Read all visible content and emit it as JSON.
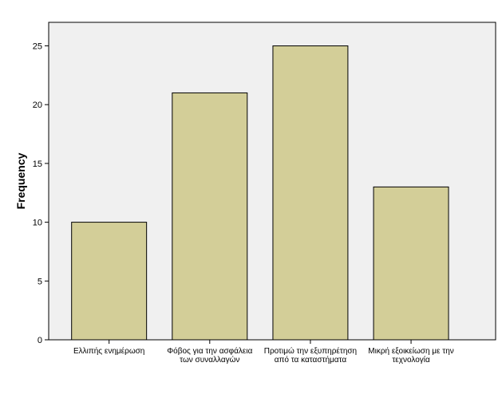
{
  "chart_data": {
    "type": "bar",
    "categories": [
      [
        "Ελλιπής ενημέρωση"
      ],
      [
        "Φόβος για την ασφάλεια",
        "των συναλλαγών"
      ],
      [
        "Προτιμώ την εξυπηρέτηση",
        "από τα καταστήματα"
      ],
      [
        "Μικρή εξοικείωση με την",
        "τεχνολογία"
      ]
    ],
    "values": [
      10,
      21,
      25,
      13
    ],
    "title": "",
    "xlabel": "",
    "ylabel": "Frequency",
    "ylim": [
      0,
      27
    ],
    "yticks": [
      0,
      5,
      10,
      15,
      20,
      25
    ],
    "grid": false,
    "colors": {
      "bar_fill": "#D3CE98",
      "bar_stroke": "#000000",
      "plot_bg": "#F0F0F0",
      "axis": "#000000"
    }
  }
}
